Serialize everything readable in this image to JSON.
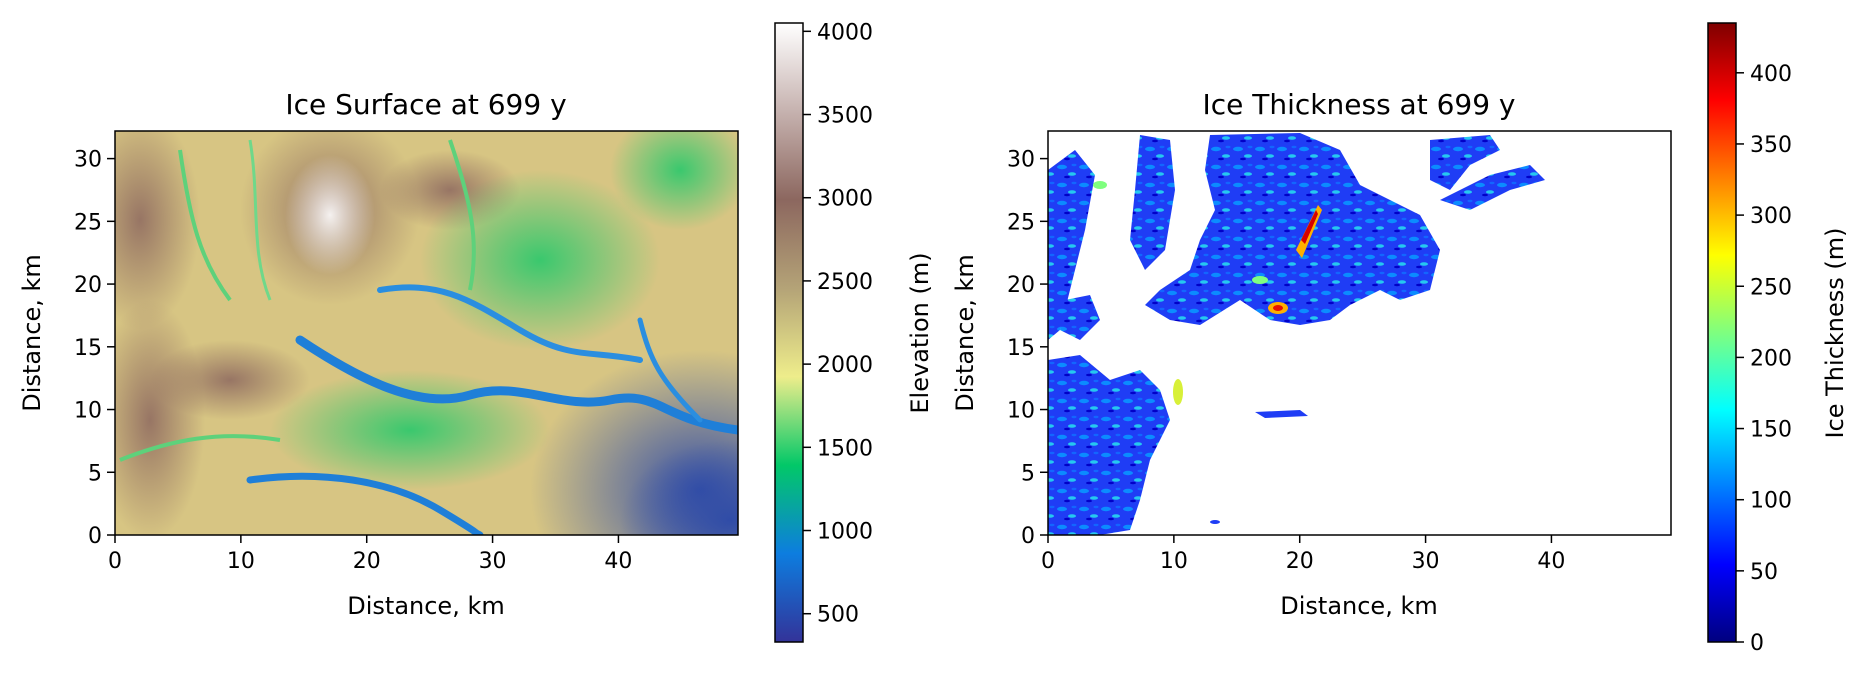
{
  "chart_data": [
    {
      "type": "heatmap",
      "title": "Ice Surface at 699 y",
      "xlabel": "Distance, km",
      "ylabel": "Distance, km",
      "xlim": [
        0,
        49.5
      ],
      "ylim": [
        0,
        32.2
      ],
      "xticks": [
        0,
        10,
        20,
        30,
        40
      ],
      "yticks": [
        0,
        5,
        10,
        15,
        20,
        25,
        30
      ],
      "grid": false,
      "colorbar": {
        "label": "Elevation (m)",
        "range": [
          330,
          4050
        ],
        "ticks": [
          500,
          1000,
          1500,
          2000,
          2500,
          3000,
          3500,
          4000
        ],
        "colormap": "terrain",
        "stops": [
          "#333399",
          "#0d7ddf",
          "#02c868",
          "#eeed8b",
          "#b4a377",
          "#8c675f",
          "#c6b2af",
          "#ffffff"
        ]
      }
    },
    {
      "type": "heatmap",
      "title": "Ice Thickness at 699 y",
      "xlabel": "Distance, km",
      "ylabel": "Distance, km",
      "xlim": [
        0,
        49.5
      ],
      "ylim": [
        0,
        32.2
      ],
      "xticks": [
        0,
        10,
        20,
        30,
        40
      ],
      "yticks": [
        0,
        5,
        10,
        15,
        20,
        25,
        30
      ],
      "grid": false,
      "colorbar": {
        "label": "Ice Thickness (m)",
        "range": [
          0,
          435
        ],
        "ticks": [
          0,
          50,
          100,
          150,
          200,
          250,
          300,
          350,
          400
        ],
        "colormap": "jet",
        "stops": [
          "#00007f",
          "#0000ff",
          "#007fff",
          "#00ffff",
          "#7fff7f",
          "#ffff00",
          "#ff7f00",
          "#ff0000",
          "#7f0000"
        ]
      }
    }
  ]
}
